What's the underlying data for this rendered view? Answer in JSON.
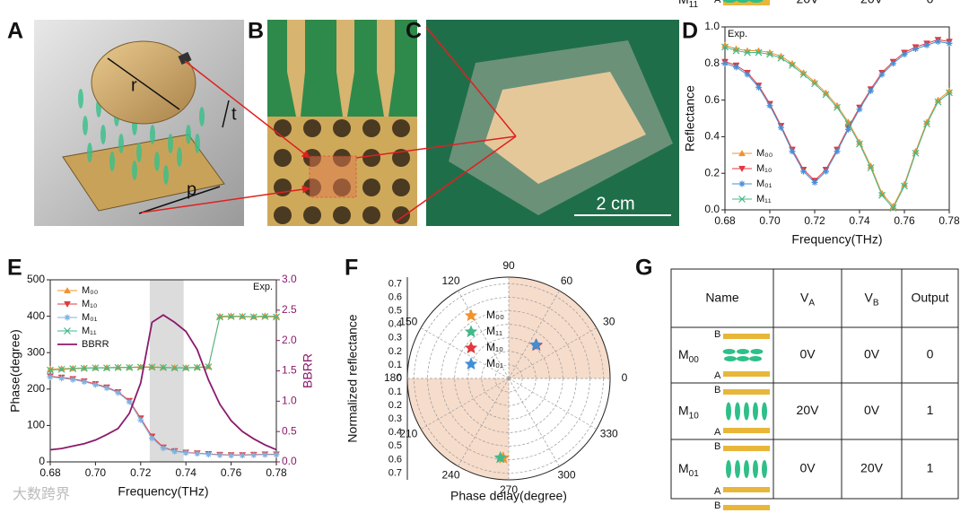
{
  "panel_labels": [
    "A",
    "B",
    "C",
    "D",
    "E",
    "F",
    "G"
  ],
  "photos": {
    "a_labels": [
      "r",
      "t",
      "p"
    ],
    "c_scale": "2 cm"
  },
  "watermark": "大数跨界",
  "chart_data": [
    {
      "type": "line",
      "annotation": "Exp.",
      "annotation_position": "upper-left",
      "x_label": "Frequency(THz)",
      "y_label": "Reflectance",
      "legend_position": "lower-left",
      "xlim": [
        0.68,
        0.78
      ],
      "xticks": [
        0.68,
        {
          "value": 0.7,
          "label": "0.70"
        },
        0.72,
        0.74,
        0.76,
        0.78
      ],
      "ylim": [
        0,
        1.0
      ],
      "yticks": [
        {
          "value": 0,
          "label": "0.0"
        },
        0.2,
        0.4,
        0.6,
        0.8,
        {
          "value": 1.0,
          "label": "1.0"
        }
      ],
      "x": [
        0.68,
        0.685,
        0.69,
        0.695,
        0.7,
        0.705,
        0.71,
        0.715,
        0.72,
        0.725,
        0.73,
        0.735,
        0.74,
        0.745,
        0.75,
        0.755,
        0.76,
        0.765,
        0.77,
        0.775,
        0.78
      ],
      "series": [
        {
          "name": "M₀₀",
          "color": "#f0922e",
          "marker": "triangle-up",
          "values": [
            0.9,
            0.88,
            0.87,
            0.87,
            0.86,
            0.84,
            0.8,
            0.75,
            0.7,
            0.64,
            0.57,
            0.48,
            0.37,
            0.24,
            0.09,
            0.02,
            0.14,
            0.32,
            0.48,
            0.6,
            0.65
          ]
        },
        {
          "name": "M₁₀",
          "color": "#e0383e",
          "marker": "triangle-down",
          "values": [
            0.81,
            0.79,
            0.75,
            0.68,
            0.58,
            0.46,
            0.33,
            0.22,
            0.16,
            0.22,
            0.33,
            0.45,
            0.56,
            0.66,
            0.75,
            0.81,
            0.86,
            0.89,
            0.91,
            0.93,
            0.92
          ]
        },
        {
          "name": "M₀₁",
          "color": "#4a8fd4",
          "marker": "asterisk",
          "values": [
            0.8,
            0.78,
            0.74,
            0.67,
            0.57,
            0.45,
            0.32,
            0.21,
            0.15,
            0.21,
            0.32,
            0.44,
            0.55,
            0.65,
            0.74,
            0.8,
            0.85,
            0.88,
            0.9,
            0.92,
            0.91
          ]
        },
        {
          "name": "M₁₁",
          "color": "#43b889",
          "marker": "x",
          "values": [
            0.89,
            0.87,
            0.86,
            0.86,
            0.85,
            0.83,
            0.79,
            0.74,
            0.69,
            0.63,
            0.56,
            0.47,
            0.36,
            0.23,
            0.08,
            0.01,
            0.13,
            0.31,
            0.47,
            0.59,
            0.64
          ]
        }
      ]
    },
    {
      "type": "line",
      "annotation": "Exp.",
      "annotation_position": "upper-right",
      "x_label": "Frequency(THz)",
      "y_label": "Phase(degree)",
      "y2_label": "BBRR",
      "legend_position": "upper-left",
      "shaded_region": [
        0.724,
        0.739
      ],
      "xlim": [
        0.68,
        0.78
      ],
      "xticks": [
        0.68,
        {
          "value": 0.7,
          "label": "0.70"
        },
        0.72,
        0.74,
        0.76,
        0.78
      ],
      "ylim": [
        0,
        500
      ],
      "yticks": [
        0,
        100,
        200,
        300,
        400,
        500
      ],
      "y2lim": [
        0,
        3.0
      ],
      "y2ticks": [
        {
          "value": 0,
          "label": "0.0"
        },
        0.5,
        {
          "value": 1.0,
          "label": "1.0"
        },
        1.5,
        {
          "value": 2.0,
          "label": "2.0"
        },
        2.5,
        {
          "value": 3.0,
          "label": "3.0"
        }
      ],
      "x": [
        0.68,
        0.685,
        0.69,
        0.695,
        0.7,
        0.705,
        0.71,
        0.715,
        0.72,
        0.725,
        0.73,
        0.735,
        0.74,
        0.745,
        0.75,
        0.755,
        0.76,
        0.765,
        0.77,
        0.775,
        0.78
      ],
      "series": [
        {
          "name": "M₀₀",
          "color": "#f0922e",
          "marker": "triangle-up",
          "values": [
            255,
            256,
            257,
            258,
            259,
            259,
            260,
            260,
            261,
            261,
            260,
            259,
            259,
            260,
            262,
            400,
            401,
            400,
            399,
            401,
            400
          ]
        },
        {
          "name": "M₁₀",
          "color": "#e0383e",
          "marker": "triangle-down",
          "values": [
            235,
            232,
            228,
            222,
            214,
            205,
            192,
            168,
            120,
            70,
            40,
            30,
            26,
            24,
            22,
            20,
            19,
            19,
            20,
            21,
            21
          ]
        },
        {
          "name": "M₀₁",
          "color": "#7fb3e0",
          "marker": "asterisk",
          "values": [
            233,
            230,
            226,
            220,
            212,
            203,
            190,
            165,
            115,
            65,
            38,
            29,
            25,
            23,
            21,
            19,
            18,
            18,
            19,
            20,
            20
          ]
        },
        {
          "name": "M₁₁",
          "color": "#43b889",
          "marker": "x",
          "values": [
            252,
            254,
            256,
            257,
            258,
            258,
            259,
            259,
            260,
            260,
            259,
            258,
            258,
            259,
            261,
            398,
            399,
            399,
            398,
            399,
            398
          ]
        },
        {
          "name": "BBRR",
          "color": "#8b1a6b",
          "marker": "none",
          "axis": "y2",
          "values": [
            0.2,
            0.22,
            0.26,
            0.3,
            0.36,
            0.45,
            0.55,
            0.8,
            1.3,
            2.3,
            2.42,
            2.3,
            2.15,
            1.85,
            1.35,
            0.95,
            0.68,
            0.5,
            0.38,
            0.28,
            0.2
          ]
        }
      ]
    },
    {
      "type": "polar",
      "r_label": "Normalized reflectance",
      "theta_label": "Phase delay(degree)",
      "rlim": [
        0,
        0.75
      ],
      "rticks": [
        0,
        0.1,
        0.2,
        0.3,
        0.4,
        0.5,
        0.6,
        0.7
      ],
      "thetaticks": [
        0,
        30,
        60,
        90,
        120,
        150,
        180,
        210,
        240,
        270,
        300,
        330
      ],
      "shaded_sectors": [
        [
          0,
          90
        ],
        [
          180,
          270
        ]
      ],
      "shade_color": "#f6dccb",
      "series": [
        {
          "name": "M₀₀",
          "color": "#f0922e",
          "theta": [
            266
          ],
          "r": [
            0.59
          ]
        },
        {
          "name": "M₁₁",
          "color": "#43b889",
          "theta": [
            264
          ],
          "r": [
            0.59
          ]
        },
        {
          "name": "M₁₀",
          "color": "#e0383e",
          "theta": [
            50
          ],
          "r": [
            0.32
          ]
        },
        {
          "name": "M₀₁",
          "color": "#3d8fd6",
          "theta": [
            51
          ],
          "r": [
            0.32
          ]
        }
      ]
    }
  ],
  "table": {
    "header": [
      {
        "text": "Name"
      },
      {
        "text": "V",
        "sub": "A"
      },
      {
        "text": "V",
        "sub": "B"
      },
      {
        "text": "Output"
      }
    ],
    "electrode_labels": [
      "B",
      "A"
    ],
    "rows": [
      [
        {
          "text": "M",
          "sub": "00"
        },
        "0V",
        "0V",
        0
      ],
      [
        {
          "text": "M",
          "sub": "10"
        },
        "20V",
        "0V",
        1
      ],
      [
        {
          "text": "M",
          "sub": "01"
        },
        "0V",
        "20V",
        1
      ],
      [
        {
          "text": "M",
          "sub": "11"
        },
        "20V",
        "20V",
        0
      ]
    ]
  }
}
